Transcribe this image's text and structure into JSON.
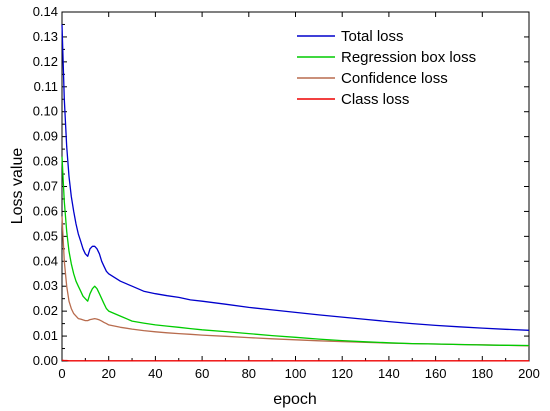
{
  "chart_data": {
    "type": "line",
    "xlabel": "epoch",
    "ylabel": "Loss value",
    "xlim": [
      0,
      200
    ],
    "ylim": [
      0,
      0.14
    ],
    "x_ticks": [
      "0",
      "20",
      "40",
      "60",
      "80",
      "100",
      "120",
      "140",
      "160",
      "180",
      "200"
    ],
    "y_ticks": [
      "0.00",
      "0.01",
      "0.02",
      "0.03",
      "0.04",
      "0.05",
      "0.06",
      "0.07",
      "0.08",
      "0.09",
      "0.10",
      "0.11",
      "0.12",
      "0.13",
      "0.14"
    ],
    "legend_position": "top-right",
    "grid": false,
    "x": [
      0,
      1,
      2,
      3,
      4,
      5,
      6,
      7,
      8,
      9,
      10,
      11,
      12,
      13,
      14,
      15,
      16,
      17,
      18,
      19,
      20,
      25,
      30,
      35,
      40,
      45,
      50,
      55,
      60,
      70,
      80,
      90,
      100,
      110,
      120,
      130,
      140,
      150,
      160,
      170,
      180,
      190,
      200
    ],
    "series": [
      {
        "name": "Total loss",
        "color": "#0000cc",
        "values": [
          0.135,
          0.105,
          0.086,
          0.074,
          0.066,
          0.06,
          0.055,
          0.051,
          0.048,
          0.045,
          0.043,
          0.042,
          0.045,
          0.046,
          0.046,
          0.045,
          0.043,
          0.04,
          0.038,
          0.036,
          0.035,
          0.032,
          0.03,
          0.028,
          0.027,
          0.0262,
          0.0255,
          0.0245,
          0.024,
          0.0228,
          0.0215,
          0.0205,
          0.0195,
          0.0185,
          0.0176,
          0.0167,
          0.0158,
          0.015,
          0.0143,
          0.0137,
          0.0132,
          0.0127,
          0.0123
        ]
      },
      {
        "name": "Regression box loss",
        "color": "#00cc00",
        "values": [
          0.082,
          0.064,
          0.052,
          0.044,
          0.039,
          0.035,
          0.032,
          0.03,
          0.028,
          0.026,
          0.025,
          0.024,
          0.027,
          0.029,
          0.03,
          0.029,
          0.027,
          0.025,
          0.023,
          0.021,
          0.02,
          0.018,
          0.016,
          0.0152,
          0.0145,
          0.014,
          0.0135,
          0.013,
          0.0125,
          0.0118,
          0.011,
          0.0102,
          0.0095,
          0.0088,
          0.0082,
          0.0077,
          0.0073,
          0.007,
          0.0068,
          0.0066,
          0.0064,
          0.0063,
          0.0062
        ]
      },
      {
        "name": "Confidence loss",
        "color": "#b86c4e",
        "values": [
          0.058,
          0.04,
          0.03,
          0.024,
          0.021,
          0.019,
          0.018,
          0.017,
          0.0168,
          0.0165,
          0.0162,
          0.0162,
          0.0166,
          0.0168,
          0.017,
          0.0168,
          0.0165,
          0.016,
          0.0155,
          0.015,
          0.0145,
          0.0135,
          0.0128,
          0.0122,
          0.0117,
          0.0113,
          0.011,
          0.0107,
          0.0104,
          0.0099,
          0.0094,
          0.0089,
          0.0085,
          0.0081,
          0.0078,
          0.0075,
          0.0072,
          0.007,
          0.0068,
          0.0066,
          0.0065,
          0.0063,
          0.0061
        ]
      },
      {
        "name": "Class loss",
        "color": "#ee0000",
        "values": [
          0.0003,
          0.0002,
          0.0002,
          0.0001,
          0.0001,
          0.0001,
          0.0001,
          0.0001,
          0.0001,
          0.0001,
          0.0001,
          0.0001,
          0.0001,
          0.0001,
          0.0001,
          0.0001,
          0.0001,
          0.0001,
          0.0001,
          0.0001,
          0.0001,
          0.0001,
          0.0001,
          0.0001,
          0.0001,
          0.0001,
          0.0001,
          0.0001,
          0.0001,
          0.0001,
          0.0001,
          0.0001,
          0.0001,
          0.0001,
          0.0001,
          0.0001,
          0.0001,
          0.0001,
          0.0001,
          0.0001,
          0.0001,
          0.0001,
          0.0001
        ]
      }
    ]
  }
}
